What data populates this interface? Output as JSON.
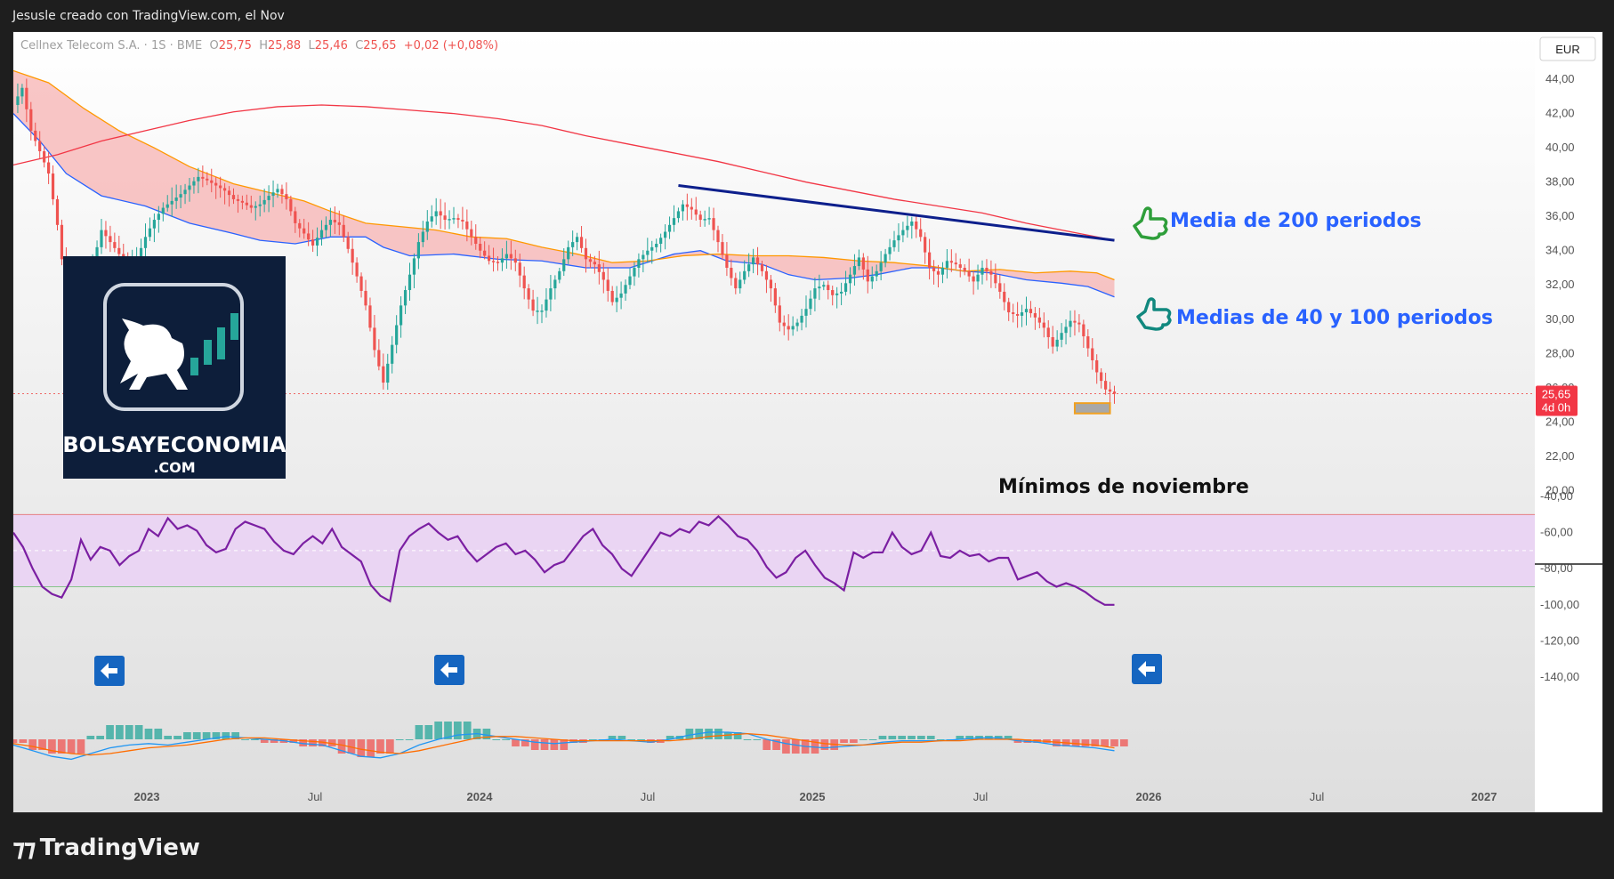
{
  "caption": "Jesusle creado con TradingView.com, el Nov",
  "header": {
    "symbol": "Cellnex Telecom S.A. · 1S · BME",
    "o_label": "O",
    "o": "25,75",
    "h_label": "H",
    "h": "25,88",
    "l_label": "L",
    "l": "25,46",
    "c_label": "C",
    "c": "25,65",
    "change": "+0,02 (+0,08%)"
  },
  "currency": "EUR",
  "price_tag": {
    "price": "25,65",
    "countdown": "4d 0h"
  },
  "logo": {
    "line1": "BOLSAYECONOMIA",
    "line2": ".COM"
  },
  "annotations": {
    "ma200": "Media de 200 periodos",
    "ma40_100": "Medias de 40 y 100 periodos",
    "lows": "Mínimos de noviembre"
  },
  "brand": "TradingView",
  "colors": {
    "up": "#26a69a",
    "down": "#ef5350",
    "ma40": "#2962ff",
    "ma100": "#ff9800",
    "ma200": "#f23645",
    "band": "#f7b3b3",
    "trendline": "#0d1f8c",
    "rsi": "#7b1fa2",
    "rsi_band": "#ead5f3",
    "annotation_text": "#2962ff",
    "icon_green": "#2e9e3a",
    "icon_teal": "#11887e"
  },
  "events": [
    {
      "type": "D",
      "color": "#2962ff"
    },
    {
      "type": "D",
      "color": "#2962ff"
    },
    {
      "type": "D",
      "color": "#2962ff"
    },
    {
      "type": "E",
      "color": "#f23645"
    },
    {
      "type": "E",
      "color": "#089981"
    },
    {
      "type": "D",
      "color": "#2962ff"
    },
    {
      "type": "E",
      "color": "#f23645"
    },
    {
      "type": "E",
      "color": "#089981"
    },
    {
      "type": "E",
      "color": "#089981"
    },
    {
      "type": "E",
      "color": "#089981"
    },
    {
      "type": "D",
      "color": "#2962ff"
    },
    {
      "type": "E",
      "color": "#f23645"
    },
    {
      "type": "E",
      "color": "#333333"
    },
    {
      "type": "E",
      "color": "#d500f9"
    }
  ],
  "chart_data": {
    "type": "candlestick",
    "timeframe": "1S",
    "x_range": [
      "2022-10",
      "2027-02"
    ],
    "x_tick_labels": [
      "2023",
      "Jul",
      "2024",
      "Jul",
      "2025",
      "Jul",
      "2026",
      "Jul",
      "2027"
    ],
    "y_ticks": [
      "44,00",
      "42,00",
      "40,00",
      "38,00",
      "36,00",
      "34,00",
      "32,00",
      "30,00",
      "28,00",
      "26,00",
      "24,00",
      "22,00",
      "20,00"
    ],
    "ylim": [
      19.5,
      45.2
    ],
    "close_path": [
      [
        0,
        42.5
      ],
      [
        2,
        43.5
      ],
      [
        4,
        41
      ],
      [
        6,
        39.8
      ],
      [
        8,
        38.5
      ],
      [
        10,
        35.5
      ],
      [
        12,
        31.5
      ],
      [
        14,
        30.5
      ],
      [
        16,
        31.8
      ],
      [
        18,
        33.2
      ],
      [
        20,
        35.2
      ],
      [
        22,
        34.5
      ],
      [
        24,
        33.8
      ],
      [
        26,
        33
      ],
      [
        28,
        33.5
      ],
      [
        30,
        34.8
      ],
      [
        32,
        35.8
      ],
      [
        34,
        36.5
      ],
      [
        36,
        36.9
      ],
      [
        38,
        37.3
      ],
      [
        40,
        37.8
      ],
      [
        42,
        38.3
      ],
      [
        44,
        38.1
      ],
      [
        46,
        37.8
      ],
      [
        48,
        37.5
      ],
      [
        50,
        37
      ],
      [
        52,
        36.8
      ],
      [
        54,
        36.5
      ],
      [
        56,
        36.7
      ],
      [
        58,
        37.2
      ],
      [
        60,
        37.6
      ],
      [
        62,
        37
      ],
      [
        64,
        35.6
      ],
      [
        66,
        35
      ],
      [
        68,
        34.3
      ],
      [
        70,
        35.2
      ],
      [
        72,
        35.8
      ],
      [
        74,
        35.5
      ],
      [
        76,
        34.1
      ],
      [
        78,
        32.5
      ],
      [
        80,
        30.8
      ],
      [
        82,
        28.2
      ],
      [
        84,
        26.3
      ],
      [
        86,
        28.5
      ],
      [
        88,
        30.8
      ],
      [
        90,
        32.6
      ],
      [
        92,
        34.5
      ],
      [
        94,
        35.7
      ],
      [
        96,
        36.3
      ],
      [
        98,
        35.8
      ],
      [
        100,
        35.9
      ],
      [
        102,
        35.7
      ],
      [
        104,
        34.8
      ],
      [
        106,
        34
      ],
      [
        108,
        33.4
      ],
      [
        110,
        33.3
      ],
      [
        112,
        33.8
      ],
      [
        114,
        33.3
      ],
      [
        116,
        31.8
      ],
      [
        118,
        30.5
      ],
      [
        120,
        30.5
      ],
      [
        122,
        31.8
      ],
      [
        124,
        32.8
      ],
      [
        126,
        34.2
      ],
      [
        128,
        34.8
      ],
      [
        130,
        33.5
      ],
      [
        132,
        33.2
      ],
      [
        134,
        32.3
      ],
      [
        136,
        31
      ],
      [
        138,
        31.5
      ],
      [
        140,
        32.5
      ],
      [
        142,
        33.5
      ],
      [
        144,
        34
      ],
      [
        146,
        34.4
      ],
      [
        148,
        35.1
      ],
      [
        150,
        35.9
      ],
      [
        152,
        36.7
      ],
      [
        154,
        36.4
      ],
      [
        156,
        35.8
      ],
      [
        158,
        35.9
      ],
      [
        160,
        34.5
      ],
      [
        162,
        33
      ],
      [
        164,
        31.8
      ],
      [
        166,
        32.8
      ],
      [
        168,
        33.6
      ],
      [
        170,
        32.8
      ],
      [
        172,
        31.8
      ],
      [
        174,
        29.8
      ],
      [
        176,
        29.4
      ],
      [
        178,
        29.8
      ],
      [
        180,
        30.6
      ],
      [
        182,
        31.8
      ],
      [
        184,
        32
      ],
      [
        186,
        31.4
      ],
      [
        188,
        31.6
      ],
      [
        190,
        32.6
      ],
      [
        192,
        33.6
      ],
      [
        194,
        32.2
      ],
      [
        196,
        32.8
      ],
      [
        198,
        33.8
      ],
      [
        200,
        34.6
      ],
      [
        202,
        35.2
      ],
      [
        204,
        35.7
      ],
      [
        206,
        34.8
      ],
      [
        208,
        33
      ],
      [
        210,
        32.6
      ],
      [
        212,
        33.4
      ],
      [
        214,
        33.2
      ],
      [
        216,
        32.8
      ],
      [
        218,
        32.2
      ],
      [
        220,
        33
      ],
      [
        222,
        32.6
      ],
      [
        224,
        31.6
      ],
      [
        226,
        30.4
      ],
      [
        228,
        30.2
      ],
      [
        230,
        30.6
      ],
      [
        232,
        30.1
      ],
      [
        234,
        29.5
      ],
      [
        236,
        28.4
      ],
      [
        238,
        29.2
      ],
      [
        240,
        29.9
      ],
      [
        242,
        29.7
      ],
      [
        244,
        28.3
      ],
      [
        246,
        26.9
      ],
      [
        248,
        25.9
      ],
      [
        250,
        25.65
      ]
    ],
    "series": [
      {
        "name": "",
        "path": [
          [
            0,
            42
          ],
          [
            6,
            40.4
          ],
          [
            12,
            38.5
          ],
          [
            20,
            37.2
          ],
          [
            30,
            36.6
          ],
          [
            40,
            35.6
          ],
          [
            50,
            35
          ],
          [
            56,
            34.6
          ],
          [
            64,
            34.4
          ],
          [
            72,
            34.8
          ],
          [
            80,
            34.8
          ],
          [
            84,
            34.2
          ],
          [
            90,
            33.7
          ],
          [
            100,
            33.8
          ],
          [
            110,
            33.5
          ],
          [
            120,
            33.4
          ],
          [
            125,
            33.2
          ],
          [
            130,
            33
          ],
          [
            140,
            33
          ],
          [
            150,
            33.8
          ],
          [
            156,
            34
          ],
          [
            162,
            33.4
          ],
          [
            170,
            33.2
          ],
          [
            176,
            32.6
          ],
          [
            182,
            32.3
          ],
          [
            190,
            32.4
          ],
          [
            196,
            32.6
          ],
          [
            204,
            33
          ],
          [
            210,
            33
          ],
          [
            216,
            32.8
          ],
          [
            222,
            32.7
          ],
          [
            230,
            32.3
          ],
          [
            238,
            32.1
          ],
          [
            244,
            31.9
          ],
          [
            250,
            31.3
          ]
        ]
      },
      {
        "name": "",
        "path": [
          [
            0,
            44.5
          ],
          [
            8,
            43.8
          ],
          [
            16,
            42.3
          ],
          [
            24,
            41
          ],
          [
            32,
            40
          ],
          [
            40,
            38.9
          ],
          [
            50,
            37.9
          ],
          [
            58,
            37.4
          ],
          [
            66,
            36.9
          ],
          [
            72,
            36.3
          ],
          [
            80,
            35.6
          ],
          [
            88,
            35.4
          ],
          [
            96,
            35.2
          ],
          [
            104,
            34.8
          ],
          [
            112,
            34.7
          ],
          [
            120,
            34.2
          ],
          [
            128,
            33.8
          ],
          [
            136,
            33.3
          ],
          [
            144,
            33.4
          ],
          [
            152,
            33.7
          ],
          [
            160,
            33.8
          ],
          [
            168,
            33.7
          ],
          [
            176,
            33.7
          ],
          [
            184,
            33.6
          ],
          [
            192,
            33.4
          ],
          [
            200,
            33.3
          ],
          [
            208,
            33.1
          ],
          [
            216,
            32.8
          ],
          [
            224,
            32.9
          ],
          [
            232,
            32.7
          ],
          [
            240,
            32.8
          ],
          [
            246,
            32.7
          ],
          [
            250,
            32.3
          ]
        ]
      },
      {
        "name": "",
        "path": [
          [
            0,
            39
          ],
          [
            10,
            39.6
          ],
          [
            20,
            40.4
          ],
          [
            30,
            41
          ],
          [
            40,
            41.6
          ],
          [
            50,
            42.1
          ],
          [
            60,
            42.4
          ],
          [
            70,
            42.5
          ],
          [
            80,
            42.4
          ],
          [
            90,
            42.2
          ],
          [
            100,
            42
          ],
          [
            110,
            41.7
          ],
          [
            120,
            41.3
          ],
          [
            130,
            40.7
          ],
          [
            140,
            40.2
          ],
          [
            150,
            39.7
          ],
          [
            160,
            39.2
          ],
          [
            170,
            38.6
          ],
          [
            180,
            38
          ],
          [
            190,
            37.5
          ],
          [
            200,
            37
          ],
          [
            210,
            36.6
          ],
          [
            220,
            36.2
          ],
          [
            230,
            35.6
          ],
          [
            240,
            35.1
          ],
          [
            250,
            34.6
          ]
        ]
      }
    ],
    "trendline": [
      [
        151,
        37.8
      ],
      [
        250,
        34.6
      ]
    ],
    "last_price": 25.65,
    "annotation_box": [
      24.5,
      25.1
    ],
    "rsi": {
      "ylim": [
        -140,
        -40
      ],
      "y_ticks": [
        "-40,00",
        "-60,00",
        "-80,00",
        "-100,00",
        "-120,00",
        "-140,00"
      ],
      "band": [
        -50,
        -90
      ],
      "midline": -70,
      "values": [
        -60,
        -68,
        -80,
        -90,
        -94,
        -96,
        -86,
        -64,
        -75,
        -68,
        -70,
        -78,
        -73,
        -70,
        -58,
        -62,
        -52,
        -58,
        -56,
        -59,
        -67,
        -71,
        -69,
        -58,
        -54,
        -56,
        -58,
        -65,
        -70,
        -72,
        -66,
        -62,
        -66,
        -58,
        -68,
        -72,
        -76,
        -89,
        -95,
        -98,
        -70,
        -62,
        -58,
        -55,
        -60,
        -64,
        -62,
        -70,
        -76,
        -72,
        -68,
        -66,
        -72,
        -70,
        -75,
        -82,
        -78,
        -76,
        -69,
        -62,
        -58,
        -67,
        -72,
        -80,
        -84,
        -76,
        -68,
        -60,
        -62,
        -58,
        -60,
        -54,
        -56,
        -51,
        -56,
        -62,
        -64,
        -70,
        -79,
        -85,
        -82,
        -74,
        -70,
        -78,
        -85,
        -88,
        -92,
        -71,
        -74,
        -71,
        -71,
        -60,
        -68,
        -72,
        -70,
        -60,
        -73,
        -74,
        -70,
        -73,
        -72,
        -76,
        -74,
        -74,
        -86,
        -84,
        -82,
        -87,
        -90,
        -88,
        -90,
        -93,
        -97,
        -100,
        -100
      ]
    },
    "macd": {
      "macd": [
        -2,
        -4,
        -6,
        -7,
        -5,
        -3,
        -2,
        -1.5,
        -2,
        -1,
        0,
        1,
        0.5,
        0,
        -0.5,
        -1.5,
        -2,
        -4,
        -6,
        -6.5,
        -5,
        -2,
        0,
        1.5,
        2,
        1,
        0,
        -1,
        -1.5,
        -1,
        -0.5,
        0,
        -0.5,
        -1,
        0,
        1.5,
        2.5,
        2.5,
        2,
        0,
        -1.5,
        -2.5,
        -3,
        -2.5,
        -2,
        -1,
        -0.5,
        -0.5,
        -0.5,
        0,
        0.5,
        0.5,
        -0.5,
        -1,
        -2,
        -2.5,
        -3,
        -4
      ],
      "signal": [
        -1.5,
        -2.5,
        -4,
        -5,
        -5.5,
        -5,
        -4,
        -3,
        -2.5,
        -2,
        -1,
        0,
        0.5,
        0.5,
        0,
        -0.5,
        -1,
        -2,
        -3.5,
        -4.5,
        -5,
        -4,
        -2.5,
        -1,
        0.5,
        1,
        1,
        0.5,
        0,
        -0.5,
        -0.5,
        -0.5,
        -0.5,
        -0.5,
        -0.5,
        0,
        1,
        1.5,
        2,
        1.5,
        0.5,
        -0.5,
        -1.5,
        -2,
        -2,
        -1.5,
        -1,
        -1,
        -0.5,
        -0.5,
        0,
        0,
        0,
        -0.5,
        -1,
        -1.5,
        -2,
        -3
      ]
    }
  }
}
